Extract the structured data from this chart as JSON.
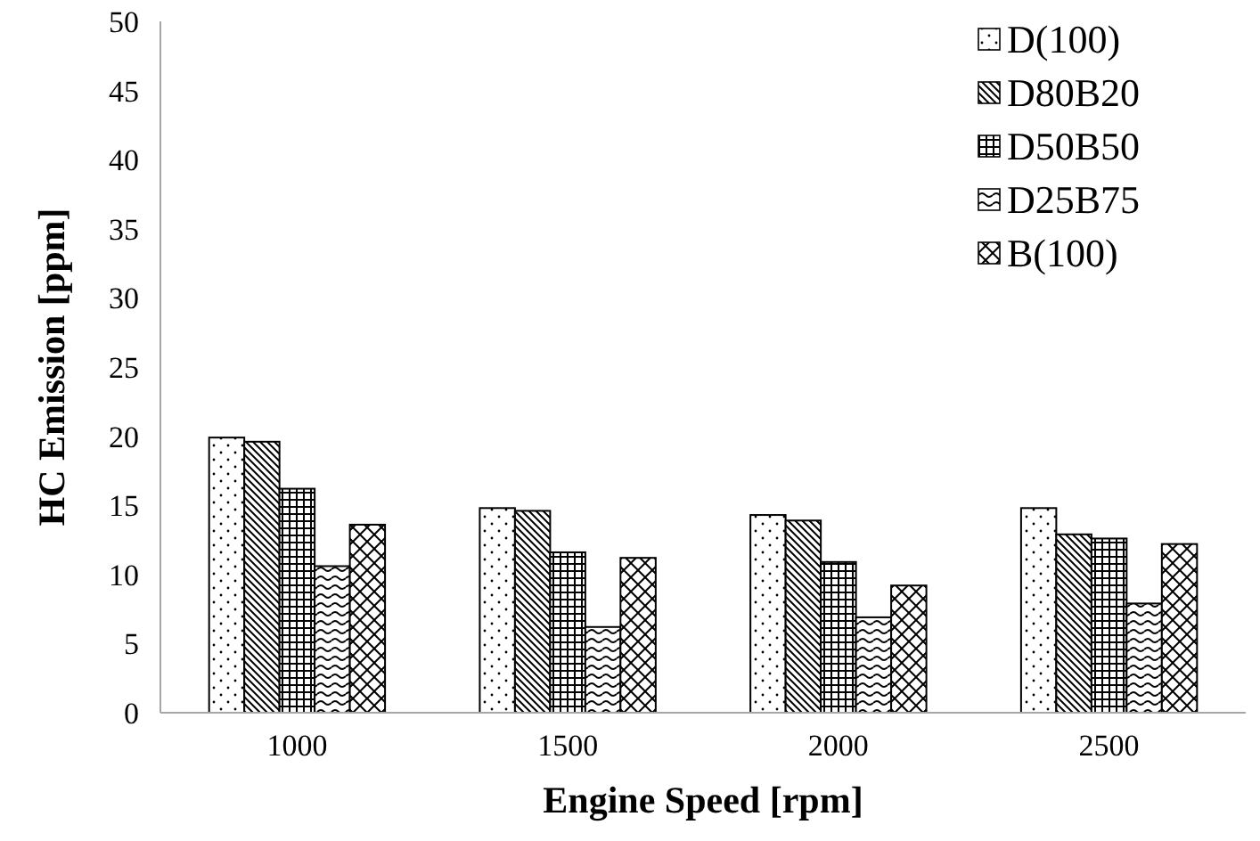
{
  "chart_data": {
    "type": "bar",
    "xlabel": "Engine Speed [rpm]",
    "ylabel": "HC Emission [ppm]",
    "categories": [
      "1000",
      "1500",
      "2000",
      "2500"
    ],
    "series": [
      {
        "name": "D(100)",
        "color": "#000000",
        "values": [
          19.9,
          14.8,
          14.3,
          14.8
        ]
      },
      {
        "name": "D80B20",
        "color": "#000000",
        "values": [
          19.6,
          14.6,
          13.9,
          12.9
        ]
      },
      {
        "name": "D50B50",
        "color": "#000000",
        "values": [
          16.2,
          11.6,
          10.9,
          12.6
        ]
      },
      {
        "name": "D25B75",
        "color": "#000000",
        "values": [
          10.6,
          6.2,
          6.9,
          7.9
        ]
      },
      {
        "name": "B(100)",
        "color": "#000000",
        "values": [
          13.6,
          11.2,
          9.2,
          12.2
        ]
      }
    ],
    "ylim": [
      0,
      50
    ],
    "yticks": [
      0,
      5,
      10,
      15,
      20,
      25,
      30,
      35,
      40,
      45,
      50
    ],
    "grid": false,
    "legend": "top right"
  }
}
